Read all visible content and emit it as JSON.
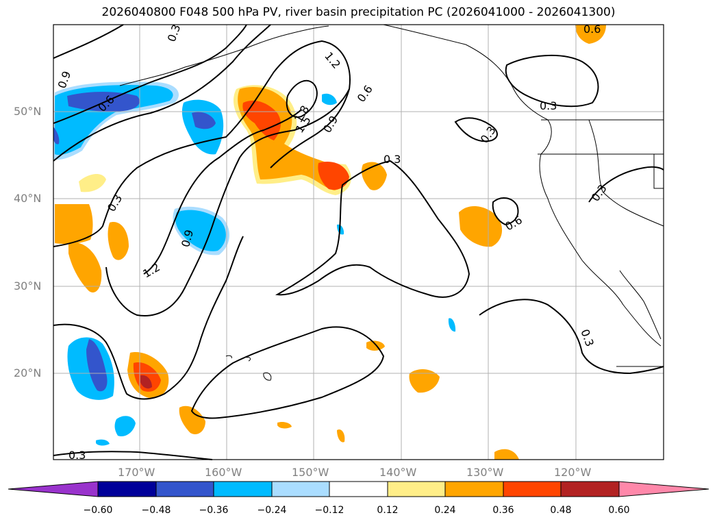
{
  "title": "2026040800 F048 500 hPa PV, river basin precipitation PC (2026041000 - 2026041300)",
  "map": {
    "lat_labels": [
      "50°N",
      "40°N",
      "30°N",
      "20°N"
    ],
    "lon_labels": [
      "170°W",
      "160°W",
      "150°W",
      "140°W",
      "130°W",
      "120°W"
    ],
    "contour_labels": [
      "0.3",
      "0.6",
      "0.9",
      "1.2",
      "1.5",
      "1.8"
    ]
  },
  "colorbar": {
    "ticks": [
      "−0.60",
      "−0.48",
      "−0.36",
      "−0.24",
      "−0.12",
      "0.12",
      "0.24",
      "0.36",
      "0.48",
      "0.60"
    ],
    "colors": [
      "#9933cc",
      "#000099",
      "#3355cc",
      "#00bbff",
      "#aaddff",
      "#ffffff",
      "#ffee88",
      "#ffa500",
      "#ff4500",
      "#b22222",
      "#ff88aa"
    ]
  }
}
